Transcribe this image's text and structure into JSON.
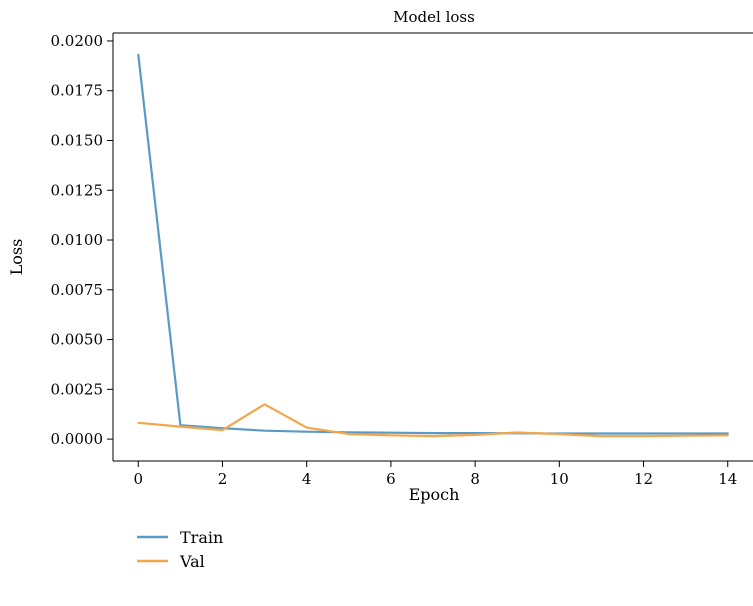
{
  "chart_data": {
    "type": "line",
    "title": "Model loss",
    "xlabel": "Epoch",
    "ylabel": "Loss",
    "xlim": [
      -0.6,
      14.6
    ],
    "ylim": [
      -0.0011,
      0.0204
    ],
    "xticks": [
      0,
      2,
      4,
      6,
      8,
      10,
      12,
      14
    ],
    "xtick_labels": [
      "0",
      "2",
      "4",
      "6",
      "8",
      "10",
      "12",
      "14"
    ],
    "yticks": [
      0.0,
      0.0025,
      0.005,
      0.0075,
      0.01,
      0.0125,
      0.015,
      0.0175,
      0.02
    ],
    "ytick_labels": [
      "0.0000",
      "0.0025",
      "0.0050",
      "0.0075",
      "0.0100",
      "0.0125",
      "0.0150",
      "0.0175",
      "0.0200"
    ],
    "grid": false,
    "legend_placement": "below-left",
    "x": [
      0,
      1,
      2,
      3,
      4,
      5,
      6,
      7,
      8,
      9,
      10,
      11,
      12,
      13,
      14
    ],
    "series": [
      {
        "name": "Train",
        "color": "#5b9ac4",
        "values": [
          0.0193,
          0.0007,
          0.00055,
          0.00042,
          0.00037,
          0.00034,
          0.00032,
          0.0003,
          0.0003,
          0.00029,
          0.00028,
          0.00028,
          0.00028,
          0.00028,
          0.00028
        ]
      },
      {
        "name": "Val",
        "color": "#f4a64a",
        "values": [
          0.00082,
          0.00063,
          0.00045,
          0.00175,
          0.00058,
          0.00025,
          0.00019,
          0.00015,
          0.00021,
          0.00033,
          0.00025,
          0.00015,
          0.00015,
          0.00017,
          0.00019
        ]
      }
    ]
  }
}
